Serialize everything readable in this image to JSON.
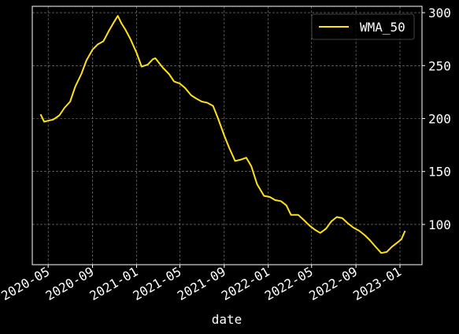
{
  "chart_data": {
    "type": "line",
    "title": "",
    "xlabel": "date",
    "ylabel": "",
    "x_tick_labels": [
      "2020-05",
      "2020-09",
      "2021-01",
      "2021-05",
      "2021-09",
      "2022-01",
      "2022-05",
      "2022-09",
      "2023-01"
    ],
    "y_ticks": [
      100,
      150,
      200,
      250,
      300
    ],
    "ylim": [
      62,
      306
    ],
    "xlim": [
      "2020-03-18",
      "2023-03-03"
    ],
    "y_axis_side": "right",
    "grid": true,
    "legend_position": "top-right",
    "colors": {
      "background": "#000000",
      "frame": "#ffffff",
      "grid": "#8a8a8a",
      "line": "#ffe119"
    },
    "series": [
      {
        "name": "WMA_50",
        "color": "#ffe119",
        "points": [
          [
            "2020-04-10",
            204
          ],
          [
            "2020-04-20",
            197
          ],
          [
            "2020-05-01",
            198
          ],
          [
            "2020-05-15",
            199
          ],
          [
            "2020-06-01",
            203
          ],
          [
            "2020-06-15",
            210
          ],
          [
            "2020-07-01",
            216
          ],
          [
            "2020-07-15",
            230
          ],
          [
            "2020-08-01",
            242
          ],
          [
            "2020-08-15",
            255
          ],
          [
            "2020-09-01",
            265
          ],
          [
            "2020-09-15",
            270
          ],
          [
            "2020-10-01",
            273
          ],
          [
            "2020-10-15",
            282
          ],
          [
            "2020-11-01",
            292
          ],
          [
            "2020-11-10",
            297
          ],
          [
            "2020-11-20",
            290
          ],
          [
            "2020-12-01",
            284
          ],
          [
            "2020-12-15",
            275
          ],
          [
            "2021-01-01",
            262
          ],
          [
            "2021-01-15",
            249
          ],
          [
            "2021-02-01",
            251
          ],
          [
            "2021-02-15",
            256
          ],
          [
            "2021-02-22",
            257
          ],
          [
            "2021-03-15",
            248
          ],
          [
            "2021-04-01",
            242
          ],
          [
            "2021-04-15",
            235
          ],
          [
            "2021-05-01",
            233
          ],
          [
            "2021-05-15",
            229
          ],
          [
            "2021-06-01",
            222
          ],
          [
            "2021-06-15",
            219
          ],
          [
            "2021-07-01",
            216
          ],
          [
            "2021-07-15",
            215
          ],
          [
            "2021-08-01",
            212
          ],
          [
            "2021-08-15",
            200
          ],
          [
            "2021-09-01",
            184
          ],
          [
            "2021-09-15",
            172
          ],
          [
            "2021-10-01",
            160
          ],
          [
            "2021-10-15",
            161
          ],
          [
            "2021-11-01",
            163
          ],
          [
            "2021-11-15",
            155
          ],
          [
            "2021-12-01",
            138
          ],
          [
            "2021-12-20",
            127
          ],
          [
            "2022-01-05",
            126
          ],
          [
            "2022-01-20",
            123
          ],
          [
            "2022-02-05",
            122
          ],
          [
            "2022-02-20",
            118
          ],
          [
            "2022-03-05",
            109
          ],
          [
            "2022-03-25",
            109
          ],
          [
            "2022-04-10",
            104
          ],
          [
            "2022-04-25",
            99
          ],
          [
            "2022-05-10",
            95
          ],
          [
            "2022-05-25",
            92
          ],
          [
            "2022-06-10",
            96
          ],
          [
            "2022-06-25",
            103
          ],
          [
            "2022-07-10",
            107
          ],
          [
            "2022-07-25",
            106
          ],
          [
            "2022-08-10",
            101
          ],
          [
            "2022-08-25",
            97
          ],
          [
            "2022-09-10",
            94
          ],
          [
            "2022-09-25",
            90
          ],
          [
            "2022-10-10",
            85
          ],
          [
            "2022-10-25",
            79
          ],
          [
            "2022-11-10",
            73
          ],
          [
            "2022-11-25",
            74
          ],
          [
            "2022-12-10",
            79
          ],
          [
            "2022-12-25",
            83
          ],
          [
            "2023-01-05",
            86
          ],
          [
            "2023-01-15",
            94
          ]
        ]
      }
    ]
  }
}
